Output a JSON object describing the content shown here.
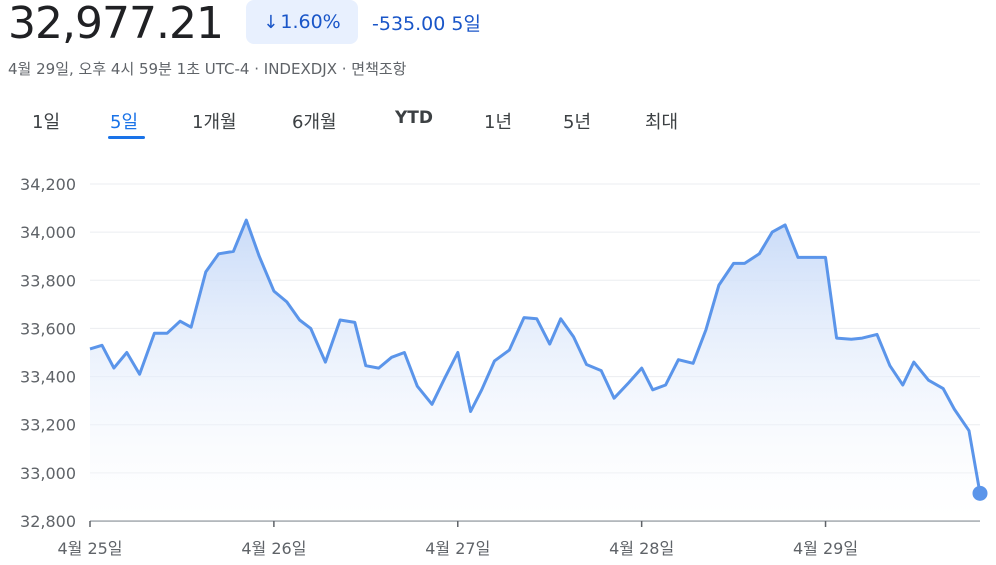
{
  "header": {
    "price": "32,977.21",
    "change_pct": "1.60%",
    "change_abs": "-535.00 5일",
    "meta": "4월 29일, 오후 4시 59분 1초 UTC-4 · INDEXDJX · 면책조항"
  },
  "tabs": [
    {
      "label": "1일",
      "active": false
    },
    {
      "label": "5일",
      "active": true
    },
    {
      "label": "1개월",
      "active": false
    },
    {
      "label": "6개월",
      "active": false
    },
    {
      "label": "YTD",
      "active": false
    },
    {
      "label": "1년",
      "active": false
    },
    {
      "label": "5년",
      "active": false
    },
    {
      "label": "최대",
      "active": false
    }
  ],
  "colors": {
    "line": "#5b95ea",
    "fill_top": "#c9dbf8",
    "accent": "#1a73e8",
    "down": "#1a56c8"
  },
  "chart_data": {
    "type": "area",
    "ylim": [
      32800,
      34200
    ],
    "yticks": [
      32800,
      33000,
      33200,
      33400,
      33600,
      33800,
      34000,
      34200
    ],
    "ytick_labels": [
      "32,800",
      "33,000",
      "33,200",
      "33,400",
      "33,600",
      "33,800",
      "34,000",
      "34,200"
    ],
    "xlim": [
      0,
      4.84
    ],
    "xticks": [
      0,
      1,
      2,
      3,
      4
    ],
    "xtick_labels": [
      "4월 25일",
      "4월 26일",
      "4월 27일",
      "4월 28일",
      "4월 29일"
    ],
    "grid": true,
    "x": [
      0,
      0.065,
      0.13,
      0.2,
      0.27,
      0.35,
      0.42,
      0.49,
      0.55,
      0.63,
      0.7,
      0.78,
      0.85,
      0.92,
      1.0,
      1.07,
      1.14,
      1.2,
      1.28,
      1.36,
      1.44,
      1.5,
      1.57,
      1.64,
      1.71,
      1.78,
      1.86,
      1.93,
      2.0,
      2.07,
      2.13,
      2.2,
      2.28,
      2.36,
      2.43,
      2.5,
      2.56,
      2.63,
      2.7,
      2.78,
      2.85,
      2.93,
      3.0,
      3.06,
      3.13,
      3.2,
      3.28,
      3.35,
      3.42,
      3.5,
      3.56,
      3.64,
      3.71,
      3.78,
      3.85,
      3.92,
      4.0,
      4.06,
      4.14,
      4.2,
      4.28,
      4.35,
      4.42,
      4.48,
      4.56,
      4.64,
      4.7,
      4.78,
      4.84
    ],
    "values": [
      33515,
      33530,
      33435,
      33500,
      33410,
      33580,
      33580,
      33630,
      33605,
      33835,
      33910,
      33920,
      34050,
      33900,
      33755,
      33710,
      33635,
      33600,
      33460,
      33635,
      33625,
      33445,
      33435,
      33480,
      33500,
      33360,
      33285,
      33395,
      33500,
      33255,
      33345,
      33465,
      33510,
      33645,
      33640,
      33535,
      33640,
      33565,
      33450,
      33425,
      33310,
      33375,
      33435,
      33345,
      33365,
      33470,
      33455,
      33595,
      33780,
      33870,
      33870,
      33910,
      34000,
      34030,
      33895,
      33895,
      33895,
      33560,
      33555,
      33560,
      33575,
      33445,
      33365,
      33460,
      33385,
      33350,
      33265,
      33175,
      32915
    ]
  }
}
